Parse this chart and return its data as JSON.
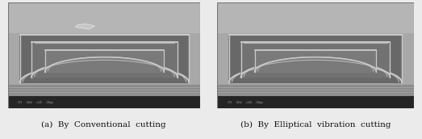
{
  "background_color": "#ebebeb",
  "left_image_caption": "(a)  By  Conventional  cutting",
  "right_image_caption": "(b)  By  Elliptical  vibration  cutting",
  "caption_fontsize": 7.5,
  "caption_color": "#111111",
  "fig_width": 5.23,
  "fig_height": 1.72,
  "dpi": 100,
  "sem_bg": "#a0a0a0",
  "sem_bg_top": "#b8b8b8",
  "sem_dark": "#555555",
  "sem_arch_light": "#d8d8d8",
  "sem_arch_mid": "#c0c0c0",
  "sem_stripe_bg": "#909090",
  "sem_bar_bg": "#303030",
  "sem_bar_text": "#aaaaaa",
  "arch_fill": "#707070",
  "arch_edge": "#d5d5d5",
  "arch_inner_fill": "#808080"
}
